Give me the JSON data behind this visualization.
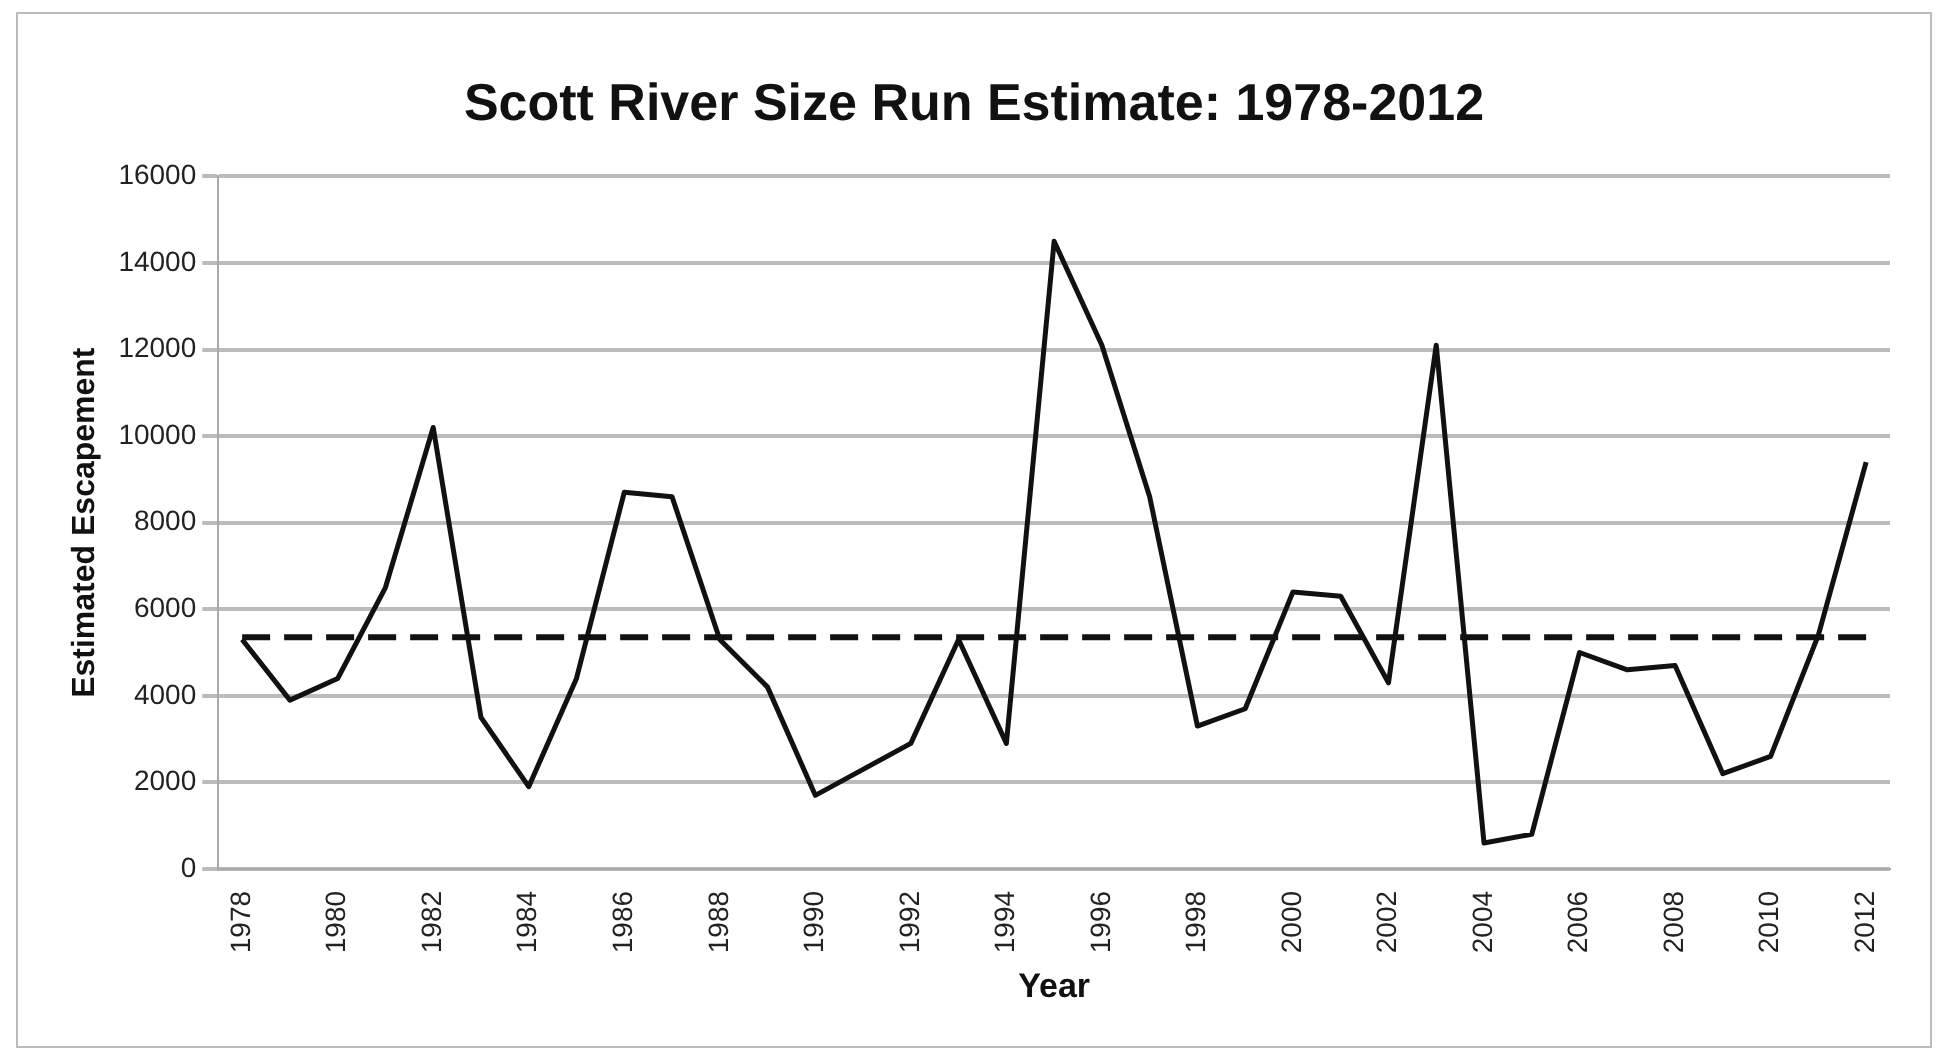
{
  "chart_data": {
    "type": "line",
    "title": "Scott River Size Run Estimate: 1978-2012",
    "xlabel": "Year",
    "ylabel": "Estimated Escapement",
    "categories": [
      "1978",
      null,
      "1980",
      null,
      "1982",
      null,
      "1984",
      null,
      "1986",
      null,
      "1988",
      null,
      "1990",
      null,
      "1992",
      null,
      "1994",
      null,
      "1996",
      null,
      "1998",
      null,
      "2000",
      null,
      "2002",
      null,
      "2004",
      null,
      "2006",
      null,
      "2008",
      null,
      "2010",
      null,
      "2012"
    ],
    "series": [
      {
        "color": "#111111",
        "values": [
          5300,
          3900,
          4400,
          6500,
          10200,
          3500,
          1900,
          4400,
          8700,
          8600,
          5300,
          4200,
          1700,
          2300,
          2900,
          5300,
          2900,
          14500,
          12100,
          8600,
          3300,
          3700,
          6400,
          6300,
          4300,
          12100,
          600,
          800,
          5000,
          4600,
          4700,
          2200,
          2600,
          5400,
          9400
        ]
      }
    ],
    "ylim": [
      0,
      16000
    ],
    "yticks": [
      0,
      2000,
      4000,
      6000,
      8000,
      10000,
      12000,
      14000,
      16000
    ],
    "ref_lines": [
      {
        "axis": "y",
        "value": 5350,
        "color": "#111111",
        "line_style": "dashed"
      }
    ],
    "grid": "y",
    "legend": false,
    "marker": "none",
    "line_style": "solid"
  }
}
